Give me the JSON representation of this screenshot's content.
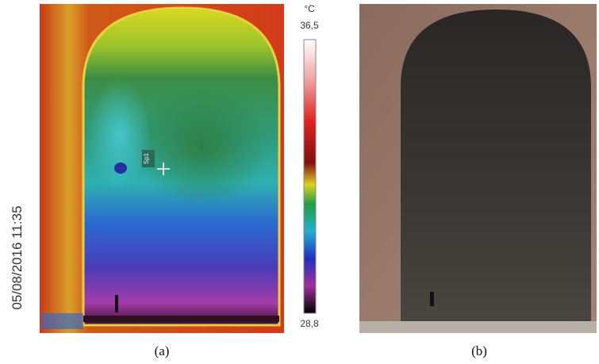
{
  "panel_a": {
    "unit": "°C",
    "scale_max": "36,5",
    "scale_min": "28,8",
    "spot_label": "Sp1",
    "timestamp": "05/08/2016 11:35",
    "caption": "(a)"
  },
  "panel_b": {
    "caption": "(b)"
  }
}
